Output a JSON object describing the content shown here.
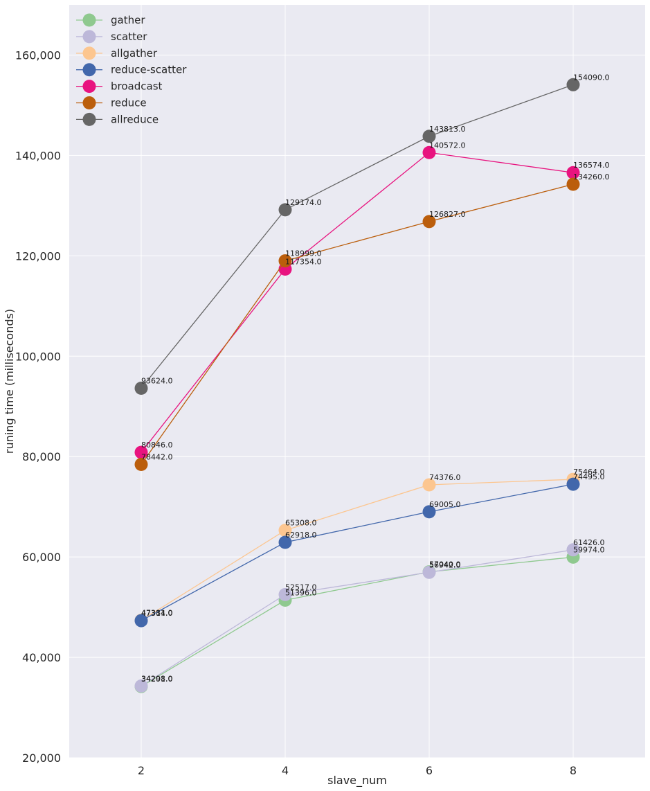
{
  "chart_data": {
    "type": "line",
    "title": "",
    "xlabel": "slave_num",
    "ylabel": "runing time (milliseconds)",
    "x": [
      2,
      4,
      6,
      8
    ],
    "x_ticks": [
      "2",
      "4",
      "6",
      "8"
    ],
    "xlim": [
      1,
      9
    ],
    "ylim": [
      20000,
      170000
    ],
    "y_ticks": [
      20000,
      40000,
      60000,
      80000,
      100000,
      120000,
      140000,
      160000
    ],
    "y_tick_labels": [
      "20,000",
      "40,000",
      "60,000",
      "80,000",
      "100,000",
      "120,000",
      "140,000",
      "160,000"
    ],
    "grid": true,
    "legend_position": "top-left",
    "series": [
      {
        "name": "gather",
        "color": "#8fc98f",
        "values": [
          34201,
          51396,
          57040,
          59974
        ],
        "labels": [
          "34201.0",
          "51396.0",
          "57040.0",
          "59974.0"
        ]
      },
      {
        "name": "scatter",
        "color": "#bdb8d9",
        "values": [
          34298,
          52517,
          56942,
          61426
        ],
        "labels": [
          "34298.0",
          "52517.0",
          "56942.0",
          "61426.0"
        ]
      },
      {
        "name": "allgather",
        "color": "#fcc690",
        "values": [
          47381,
          65308,
          74376,
          75464
        ],
        "labels": [
          "47381.0",
          "65308.0",
          "74376.0",
          "75464.0"
        ]
      },
      {
        "name": "reduce-scatter",
        "color": "#4267ab",
        "values": [
          47314,
          62918,
          69005,
          74495
        ],
        "labels": [
          "47314.0",
          "62918.0",
          "69005.0",
          "74495.0"
        ]
      },
      {
        "name": "broadcast",
        "color": "#e8137f",
        "values": [
          80846,
          117354,
          140572,
          136574
        ],
        "labels": [
          "80846.0",
          "117354.0",
          "140572.0",
          "136574.0"
        ]
      },
      {
        "name": "reduce",
        "color": "#bb5e0c",
        "values": [
          78442,
          118999,
          126827,
          134260
        ],
        "labels": [
          "78442.0",
          "118999.0",
          "126827.0",
          "134260.0"
        ]
      },
      {
        "name": "allreduce",
        "color": "#666666",
        "values": [
          93624,
          129174,
          143813,
          154090
        ],
        "labels": [
          "93624.0",
          "129174.0",
          "143813.0",
          "154090.0"
        ]
      }
    ]
  }
}
